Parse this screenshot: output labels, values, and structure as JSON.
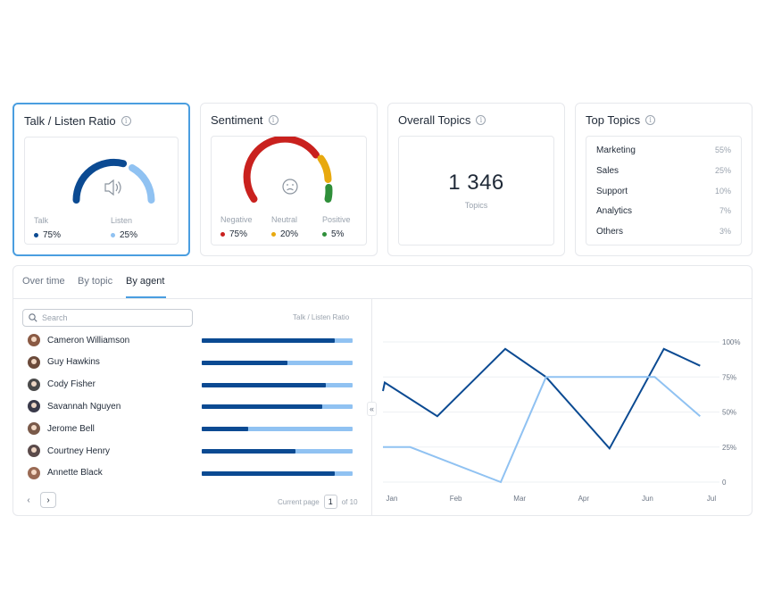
{
  "cards": {
    "talk_listen": {
      "title": "Talk / Listen Ratio",
      "talk_label": "Talk",
      "talk_value": "75%",
      "talk_color": "#0b4a92",
      "listen_label": "Listen",
      "listen_value": "25%",
      "listen_color": "#90c2f2",
      "icon": "speaker-icon"
    },
    "sentiment": {
      "title": "Sentiment",
      "negative_label": "Negative",
      "negative_value": "75%",
      "negative_color": "#c9211e",
      "neutral_label": "Neutral",
      "neutral_value": "20%",
      "neutral_color": "#e8a90e",
      "positive_label": "Positive",
      "positive_value": "5%",
      "positive_color": "#2f8f3a",
      "icon": "frown-face-icon"
    },
    "overall_topics": {
      "title": "Overall Topics",
      "value": "1 346",
      "sub": "Topics"
    },
    "top_topics": {
      "title": "Top Topics",
      "items": [
        {
          "name": "Marketing",
          "pct": "55%"
        },
        {
          "name": "Sales",
          "pct": "25%"
        },
        {
          "name": "Support",
          "pct": "10%"
        },
        {
          "name": "Analytics",
          "pct": "7%"
        },
        {
          "name": "Others",
          "pct": "3%"
        }
      ]
    }
  },
  "tabs": [
    {
      "label": "Over time",
      "active": false
    },
    {
      "label": "By topic",
      "active": false
    },
    {
      "label": "By agent",
      "active": true
    }
  ],
  "search": {
    "placeholder": "Search"
  },
  "column_header": "Talk / Listen Ratio",
  "agents": [
    {
      "name": "Cameron Williamson",
      "talk": 0.88,
      "avatar_color": "#8a5a44"
    },
    {
      "name": "Guy Hawkins",
      "talk": 0.57,
      "avatar_color": "#6b4a3a"
    },
    {
      "name": "Cody Fisher",
      "talk": 0.82,
      "avatar_color": "#4a4a4a"
    },
    {
      "name": "Savannah Nguyen",
      "talk": 0.8,
      "avatar_color": "#3a3a4a"
    },
    {
      "name": "Jerome Bell",
      "talk": 0.31,
      "avatar_color": "#7a5a4a"
    },
    {
      "name": "Courtney Henry",
      "talk": 0.62,
      "avatar_color": "#5a4a4a"
    },
    {
      "name": "Annette Black",
      "talk": 0.88,
      "avatar_color": "#9a6a54"
    }
  ],
  "pager": {
    "label": "Current page",
    "page": "1",
    "of": "of 10"
  },
  "chart_data": {
    "type": "line",
    "x": [
      "Jan",
      "Feb",
      "Mar",
      "Apr",
      "Jun",
      "Jul"
    ],
    "y_ticks": [
      "100%",
      "75%",
      "50%",
      "25%",
      "0"
    ],
    "ylim": [
      0,
      100
    ],
    "series": [
      {
        "color": "#0b4a92",
        "points": [
          [
            0,
            65
          ],
          [
            0.02,
            71
          ],
          [
            0.6,
            47
          ],
          [
            1.35,
            95
          ],
          [
            1.8,
            75
          ],
          [
            2.5,
            24
          ],
          [
            3.1,
            95
          ],
          [
            3.5,
            83
          ]
        ]
      },
      {
        "color": "#90c2f2",
        "points": [
          [
            0,
            25
          ],
          [
            0.3,
            25
          ],
          [
            1.3,
            0
          ],
          [
            1.8,
            75
          ],
          [
            3.0,
            75
          ],
          [
            3.5,
            47
          ]
        ]
      }
    ]
  }
}
